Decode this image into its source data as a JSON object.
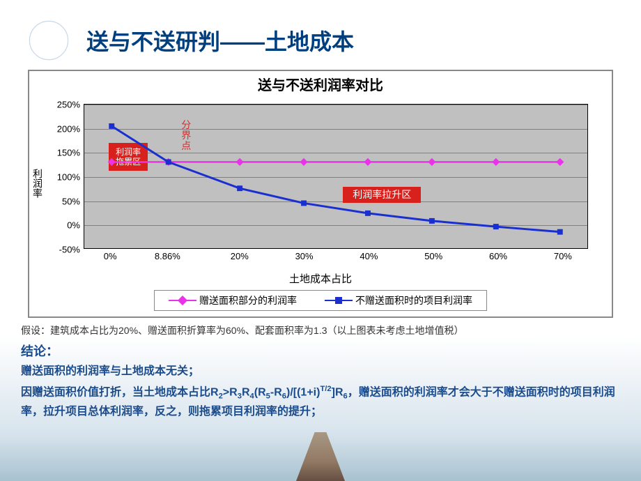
{
  "header": {
    "title": "送与不送研判——土地成本",
    "icon_fg": "#ffffff",
    "icon_bg": "#c8d8e8"
  },
  "chart": {
    "title": "送与不送利润率对比",
    "type": "line",
    "xlabel": "土地成本占比",
    "ylabel": "利润率",
    "background_color": "#c0c0c0",
    "grid_color": "#808080",
    "ylim": [
      -50,
      250
    ],
    "ytick_step": 50,
    "yticks": [
      "-50%",
      "0%",
      "50%",
      "100%",
      "150%",
      "200%",
      "250%"
    ],
    "xticks": [
      {
        "val": 0,
        "label": "0%"
      },
      {
        "val": 8.86,
        "label": "8.86%"
      },
      {
        "val": 20,
        "label": "20%"
      },
      {
        "val": 30,
        "label": "30%"
      },
      {
        "val": 40,
        "label": "40%"
      },
      {
        "val": 50,
        "label": "50%"
      },
      {
        "val": 60,
        "label": "60%"
      },
      {
        "val": 70,
        "label": "70%"
      }
    ],
    "x_range": [
      -4,
      74
    ],
    "series": [
      {
        "name": "赠送面积部分的利润率",
        "color": "#e933e8",
        "marker": "diamond",
        "line_width": 2.5,
        "x": [
          0,
          8.86,
          20,
          30,
          40,
          50,
          60,
          70
        ],
        "y": [
          130,
          130,
          130,
          130,
          130,
          130,
          130,
          130
        ]
      },
      {
        "name": "不赠送面积时的项目利润率",
        "color": "#1a2fcf",
        "marker": "square",
        "line_width": 3,
        "x": [
          0,
          8.86,
          20,
          30,
          40,
          50,
          60,
          70
        ],
        "y": [
          205,
          130,
          75,
          44,
          23,
          7,
          -5,
          -16
        ]
      }
    ],
    "annotations": {
      "drag_zone": "利润率\n拖累区",
      "pull_zone": "利润率拉升区",
      "break_point": "分界点"
    },
    "legend_border": "#888888"
  },
  "text": {
    "assumption": "假设：建筑成本占比为20%、赠送面积折算率为60%、配套面积率为1.3（以上图表未考虑土地增值税）",
    "conclusion_title": "结论：",
    "conclusion1": "赠送面积的利润率与土地成本无关；",
    "conclusion2_pre": "因赠送面积价值打折，当土地成本占比R",
    "conclusion2_rest": ">R₃R₄(R₅-R₆)/[(1+i)ᵀ/²]R₆，赠送面积的利润率才会大于不赠送面积时的项目利润率，拉升项目总体利润率，反之，则拖累项目利润率的提升；"
  },
  "palette": {
    "title_color": "#003f7f",
    "conclusion_color": "#1a4b8c",
    "red_box_bg": "#d8201c",
    "break_color": "#cc3333"
  }
}
